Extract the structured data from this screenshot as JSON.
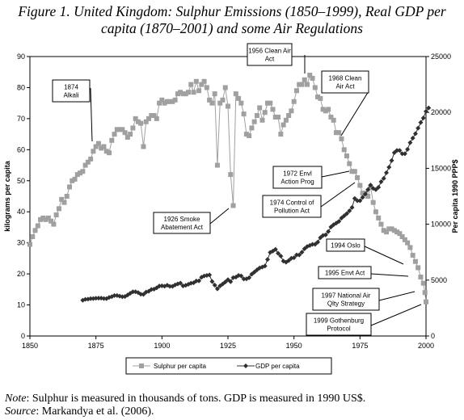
{
  "figure_title": {
    "line1": "Figure 1.  United Kingdom: Sulphur Emissions (1850–1999), Real GDP per",
    "line2": "capita (1870–2001) and some Air Regulations"
  },
  "notes": {
    "note_label": "Note",
    "note_text": ": Sulphur is measured in thousands of tons. GDP is measured in 1990 US$.",
    "source_label": "Source",
    "source_text": ": Markandya et al. (2006)."
  },
  "chart_data": {
    "type": "line",
    "y_left_label": "kilograms per capita",
    "y_right_label": "Per capita 1990 PPP$",
    "x_ticks": [
      "1850",
      "1875",
      "1900",
      "1925",
      "1950",
      "1975",
      "2000"
    ],
    "y_left_ticks": [
      "0",
      "10",
      "20",
      "30",
      "40",
      "50",
      "60",
      "70",
      "80",
      "90"
    ],
    "y_right_ticks": [
      "0",
      "5000",
      "10000",
      "15000",
      "20000",
      "25000"
    ],
    "xlim": [
      1850,
      2000
    ],
    "ylim_left": [
      0,
      90
    ],
    "ylim_right": [
      0,
      25000
    ],
    "grid": false,
    "legend_position": "bottom",
    "series": [
      {
        "name": "Sulphur per capita",
        "axis": "left",
        "color": "#a0a0a0",
        "marker": "square",
        "points": [
          [
            1850,
            29.5
          ],
          [
            1851,
            32
          ],
          [
            1852,
            34
          ],
          [
            1853,
            35.5
          ],
          [
            1854,
            37.5
          ],
          [
            1855,
            38
          ],
          [
            1856,
            37.5
          ],
          [
            1857,
            38
          ],
          [
            1858,
            37
          ],
          [
            1859,
            36
          ],
          [
            1860,
            39
          ],
          [
            1861,
            41
          ],
          [
            1862,
            44
          ],
          [
            1863,
            43
          ],
          [
            1864,
            45
          ],
          [
            1865,
            48
          ],
          [
            1866,
            50
          ],
          [
            1867,
            50.5
          ],
          [
            1868,
            52
          ],
          [
            1869,
            52.5
          ],
          [
            1870,
            53
          ],
          [
            1871,
            55
          ],
          [
            1872,
            56
          ],
          [
            1873,
            57
          ],
          [
            1874,
            59.5
          ],
          [
            1875,
            61
          ],
          [
            1876,
            62
          ],
          [
            1877,
            60.5
          ],
          [
            1878,
            61
          ],
          [
            1879,
            59.5
          ],
          [
            1880,
            59
          ],
          [
            1881,
            63
          ],
          [
            1882,
            65
          ],
          [
            1883,
            66.5
          ],
          [
            1884,
            66.5
          ],
          [
            1885,
            66.5
          ],
          [
            1886,
            65.5
          ],
          [
            1887,
            64
          ],
          [
            1888,
            65
          ],
          [
            1889,
            67
          ],
          [
            1890,
            70
          ],
          [
            1891,
            69
          ],
          [
            1892,
            68.5
          ],
          [
            1893,
            61
          ],
          [
            1894,
            69
          ],
          [
            1895,
            70
          ],
          [
            1896,
            71
          ],
          [
            1897,
            71
          ],
          [
            1898,
            70
          ],
          [
            1899,
            75
          ],
          [
            1900,
            76
          ],
          [
            1901,
            75
          ],
          [
            1902,
            75.5
          ],
          [
            1903,
            75.5
          ],
          [
            1904,
            75.5
          ],
          [
            1905,
            76
          ],
          [
            1906,
            78
          ],
          [
            1907,
            78.5
          ],
          [
            1908,
            78
          ],
          [
            1909,
            78
          ],
          [
            1910,
            78.5
          ],
          [
            1911,
            81
          ],
          [
            1912,
            78.5
          ],
          [
            1913,
            82
          ],
          [
            1914,
            79
          ],
          [
            1915,
            81
          ],
          [
            1916,
            82
          ],
          [
            1917,
            80
          ],
          [
            1918,
            76
          ],
          [
            1919,
            75
          ],
          [
            1920,
            78
          ],
          [
            1921,
            55
          ],
          [
            1922,
            75
          ],
          [
            1923,
            76
          ],
          [
            1924,
            80
          ],
          [
            1925,
            74
          ],
          [
            1926,
            52
          ],
          [
            1927,
            42
          ],
          [
            1928,
            78
          ],
          [
            1929,
            76.5
          ],
          [
            1930,
            75
          ],
          [
            1931,
            71.5
          ],
          [
            1932,
            65
          ],
          [
            1933,
            64.5
          ],
          [
            1934,
            67
          ],
          [
            1935,
            69
          ],
          [
            1936,
            71
          ],
          [
            1937,
            73.5
          ],
          [
            1938,
            69.5
          ],
          [
            1939,
            72
          ],
          [
            1940,
            75
          ],
          [
            1941,
            75
          ],
          [
            1942,
            73
          ],
          [
            1943,
            70.5
          ],
          [
            1944,
            70.5
          ],
          [
            1945,
            65
          ],
          [
            1946,
            68
          ],
          [
            1947,
            69.5
          ],
          [
            1948,
            71
          ],
          [
            1949,
            72.5
          ],
          [
            1950,
            75.5
          ],
          [
            1951,
            79
          ],
          [
            1952,
            81
          ],
          [
            1953,
            81
          ],
          [
            1954,
            82.5
          ],
          [
            1955,
            81
          ],
          [
            1956,
            84
          ],
          [
            1957,
            83
          ],
          [
            1958,
            80
          ],
          [
            1959,
            77
          ],
          [
            1960,
            76.5
          ],
          [
            1961,
            73
          ],
          [
            1962,
            72.5
          ],
          [
            1963,
            73
          ],
          [
            1964,
            70.5
          ],
          [
            1965,
            69.5
          ],
          [
            1966,
            65.5
          ],
          [
            1967,
            65.5
          ],
          [
            1968,
            63.5
          ],
          [
            1969,
            60
          ],
          [
            1970,
            58
          ],
          [
            1971,
            55.5
          ],
          [
            1972,
            53
          ],
          [
            1973,
            53
          ],
          [
            1974,
            51
          ],
          [
            1975,
            48.5
          ],
          [
            1976,
            46
          ],
          [
            1977,
            46
          ],
          [
            1978,
            45
          ],
          [
            1979,
            48
          ],
          [
            1980,
            43
          ],
          [
            1981,
            40
          ],
          [
            1982,
            38
          ],
          [
            1983,
            36
          ],
          [
            1984,
            34
          ],
          [
            1985,
            33.5
          ],
          [
            1986,
            34.5
          ],
          [
            1987,
            34.5
          ],
          [
            1988,
            34
          ],
          [
            1989,
            33.5
          ],
          [
            1990,
            33
          ],
          [
            1991,
            32
          ],
          [
            1992,
            31
          ],
          [
            1993,
            30
          ],
          [
            1994,
            28.5
          ],
          [
            1995,
            26
          ],
          [
            1996,
            24
          ],
          [
            1997,
            22
          ],
          [
            1998,
            19
          ],
          [
            1999,
            17
          ],
          [
            1999.6,
            14
          ],
          [
            2000,
            11
          ]
        ]
      },
      {
        "name": "GDP per capita",
        "axis": "right",
        "color": "#303030",
        "marker": "diamond",
        "points": [
          [
            1870,
            3200
          ],
          [
            1871,
            3280
          ],
          [
            1872,
            3300
          ],
          [
            1873,
            3340
          ],
          [
            1874,
            3350
          ],
          [
            1875,
            3380
          ],
          [
            1876,
            3390
          ],
          [
            1877,
            3390
          ],
          [
            1878,
            3350
          ],
          [
            1879,
            3340
          ],
          [
            1880,
            3450
          ],
          [
            1881,
            3520
          ],
          [
            1882,
            3620
          ],
          [
            1883,
            3620
          ],
          [
            1884,
            3570
          ],
          [
            1885,
            3510
          ],
          [
            1886,
            3530
          ],
          [
            1887,
            3670
          ],
          [
            1888,
            3820
          ],
          [
            1889,
            3960
          ],
          [
            1890,
            3960
          ],
          [
            1891,
            3880
          ],
          [
            1892,
            3740
          ],
          [
            1893,
            3720
          ],
          [
            1894,
            3930
          ],
          [
            1895,
            4000
          ],
          [
            1896,
            4160
          ],
          [
            1897,
            4190
          ],
          [
            1898,
            4310
          ],
          [
            1899,
            4470
          ],
          [
            1900,
            4490
          ],
          [
            1901,
            4450
          ],
          [
            1902,
            4540
          ],
          [
            1903,
            4440
          ],
          [
            1904,
            4440
          ],
          [
            1905,
            4570
          ],
          [
            1906,
            4660
          ],
          [
            1907,
            4730
          ],
          [
            1908,
            4480
          ],
          [
            1909,
            4530
          ],
          [
            1910,
            4620
          ],
          [
            1911,
            4720
          ],
          [
            1912,
            4760
          ],
          [
            1913,
            4920
          ],
          [
            1914,
            4930
          ],
          [
            1915,
            5260
          ],
          [
            1916,
            5370
          ],
          [
            1917,
            5420
          ],
          [
            1918,
            5460
          ],
          [
            1919,
            4880
          ],
          [
            1920,
            4550
          ],
          [
            1921,
            4220
          ],
          [
            1922,
            4480
          ],
          [
            1923,
            4650
          ],
          [
            1924,
            4830
          ],
          [
            1925,
            5040
          ],
          [
            1926,
            4860
          ],
          [
            1927,
            5220
          ],
          [
            1928,
            5270
          ],
          [
            1929,
            5420
          ],
          [
            1930,
            5370
          ],
          [
            1931,
            5100
          ],
          [
            1932,
            5110
          ],
          [
            1933,
            5210
          ],
          [
            1934,
            5530
          ],
          [
            1935,
            5720
          ],
          [
            1936,
            5920
          ],
          [
            1937,
            6090
          ],
          [
            1938,
            6170
          ],
          [
            1939,
            6260
          ],
          [
            1940,
            6850
          ],
          [
            1941,
            7480
          ],
          [
            1942,
            7600
          ],
          [
            1943,
            7750
          ],
          [
            1944,
            7400
          ],
          [
            1945,
            7150
          ],
          [
            1946,
            6700
          ],
          [
            1947,
            6600
          ],
          [
            1948,
            6750
          ],
          [
            1949,
            6950
          ],
          [
            1950,
            7000
          ],
          [
            1951,
            7250
          ],
          [
            1952,
            7250
          ],
          [
            1953,
            7500
          ],
          [
            1954,
            7800
          ],
          [
            1955,
            8000
          ],
          [
            1956,
            8100
          ],
          [
            1957,
            8200
          ],
          [
            1958,
            8200
          ],
          [
            1959,
            8400
          ],
          [
            1960,
            8800
          ],
          [
            1961,
            9000
          ],
          [
            1962,
            9050
          ],
          [
            1963,
            9350
          ],
          [
            1964,
            9750
          ],
          [
            1965,
            9950
          ],
          [
            1966,
            10100
          ],
          [
            1967,
            10250
          ],
          [
            1968,
            10550
          ],
          [
            1969,
            10750
          ],
          [
            1970,
            10950
          ],
          [
            1971,
            11200
          ],
          [
            1972,
            11500
          ],
          [
            1973,
            12300
          ],
          [
            1974,
            12100
          ],
          [
            1975,
            12100
          ],
          [
            1976,
            12400
          ],
          [
            1977,
            12700
          ],
          [
            1978,
            13100
          ],
          [
            1979,
            13500
          ],
          [
            1980,
            13200
          ],
          [
            1981,
            13100
          ],
          [
            1982,
            13300
          ],
          [
            1983,
            13800
          ],
          [
            1984,
            14100
          ],
          [
            1985,
            14600
          ],
          [
            1986,
            15100
          ],
          [
            1987,
            15700
          ],
          [
            1988,
            16400
          ],
          [
            1989,
            16600
          ],
          [
            1990,
            16600
          ],
          [
            1991,
            16300
          ],
          [
            1992,
            16300
          ],
          [
            1993,
            16700
          ],
          [
            1994,
            17300
          ],
          [
            1995,
            17700
          ],
          [
            1996,
            18100
          ],
          [
            1997,
            18600
          ],
          [
            1998,
            19100
          ],
          [
            1999,
            19500
          ],
          [
            2000,
            20100
          ],
          [
            2001,
            20400
          ]
        ]
      }
    ],
    "annotations": [
      {
        "id": "1874-alkali",
        "lines": [
          "1874",
          "Alkali"
        ]
      },
      {
        "id": "1926-smoke",
        "lines": [
          "1926 Smoke",
          "Abatement Act"
        ]
      },
      {
        "id": "1956-clean-air",
        "lines": [
          "1956 Clean Air",
          "Act"
        ]
      },
      {
        "id": "1968-clean-air",
        "lines": [
          "1968 Clean",
          "Air Act"
        ]
      },
      {
        "id": "1972-envl",
        "lines": [
          "1972 Envl",
          "Action Prog"
        ]
      },
      {
        "id": "1974-control",
        "lines": [
          "1974 Control of",
          "Pollution Act"
        ]
      },
      {
        "id": "1994-oslo",
        "lines": [
          "1994 Oslo"
        ]
      },
      {
        "id": "1995-envt",
        "lines": [
          "1995 Envt Act"
        ]
      },
      {
        "id": "1997-national-air",
        "lines": [
          "1997 National Air",
          "Qlty Strategy"
        ]
      },
      {
        "id": "1999-gothenburg",
        "lines": [
          "1999 Gothenburg",
          "Protocol"
        ]
      }
    ]
  }
}
